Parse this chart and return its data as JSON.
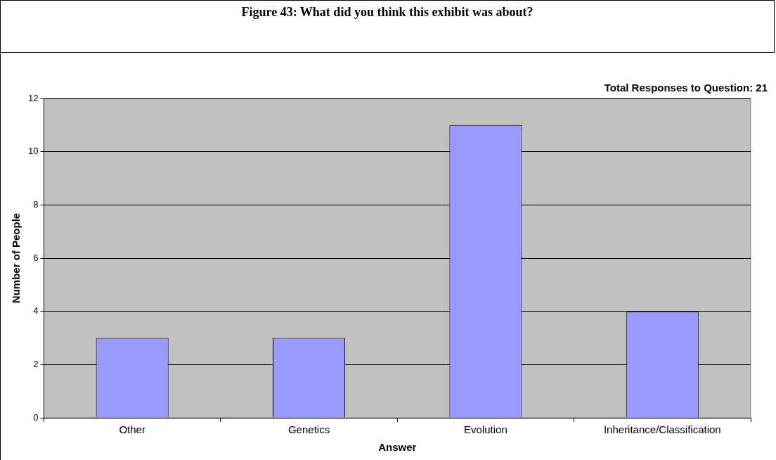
{
  "chart_data": {
    "type": "bar",
    "title": "Figure 43:  What did you think this exhibit was about?",
    "categories": [
      "Other",
      "Genetics",
      "Evolution",
      "Inheritance/Classification"
    ],
    "values": [
      3,
      3,
      11,
      4
    ],
    "color": "#9999ff",
    "xlabel": "Answer",
    "ylabel": "Number of People",
    "ylim": [
      0,
      12
    ],
    "yticks": [
      0,
      2,
      4,
      6,
      8,
      10,
      12
    ],
    "grid": "y",
    "annotations": [
      "Total Responses to Question: 21"
    ]
  }
}
